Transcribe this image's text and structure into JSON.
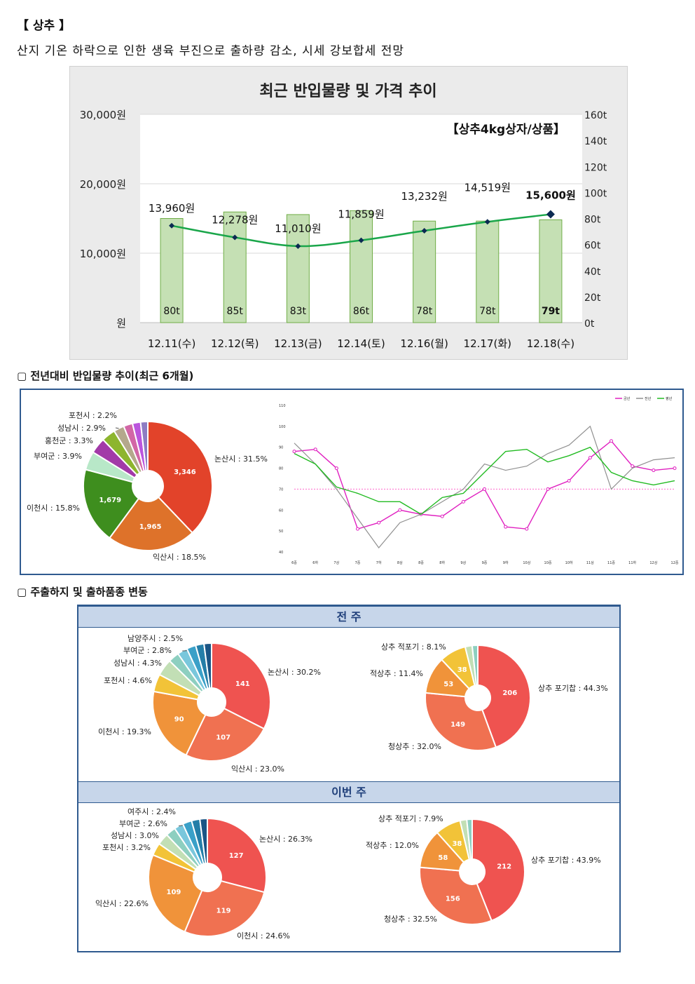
{
  "header": {
    "title": "【 상추 】",
    "summary": "산지 기온 하락으로 인한 생육 부진으로 출하량 감소, 시세 강보합세 전망"
  },
  "main_chart": {
    "title": "최근 반입물량 및 가격 추이",
    "note": "【상추4kg상자/상품】",
    "chart_data": {
      "type": "bar",
      "categories": [
        "12.11(수)",
        "12.12(목)",
        "12.13(금)",
        "12.14(토)",
        "12.16(월)",
        "12.17(화)",
        "12.18(수)"
      ],
      "series": [
        {
          "values": [
            80,
            85,
            83,
            86,
            78,
            78,
            79
          ],
          "labels": [
            "80t",
            "85t",
            "83t",
            "86t",
            "78t",
            "78t",
            "79t"
          ]
        },
        {
          "values": [
            13960,
            12278,
            11010,
            11859,
            13232,
            14519,
            15600
          ],
          "labels": [
            "13,960원",
            "12,278원",
            "11,010원",
            "11,859원",
            "13,232원",
            "14,519원",
            "15,600원"
          ]
        }
      ],
      "left_ticks": [
        "30,000원",
        "20,000원",
        "10,000원",
        "원"
      ],
      "right_ticks": [
        "160t",
        "140t",
        "120t",
        "100t",
        "80t",
        "60t",
        "40t",
        "20t",
        "0t"
      ],
      "ylim_left": [
        0,
        30000
      ],
      "ylim_right": [
        0,
        160
      ]
    }
  },
  "section2": {
    "heading": "▢ 전년대비 반입물량 추이(최근 6개월)",
    "pie": {
      "chart_data": {
        "type": "pie",
        "slices": [
          {
            "label": "논산시 : 31.5%",
            "value": 3346,
            "display": "3,346",
            "color": "#e2432a"
          },
          {
            "label": "익산시 : 18.5%",
            "value": 1965,
            "display": "1,965",
            "color": "#de722a"
          },
          {
            "label": "이천시 : 15.8%",
            "value": 1679,
            "display": "1,679",
            "color": "#3e8e1e"
          },
          {
            "label": "부여군 : 3.9%",
            "value": 414,
            "display": "",
            "color": "#b8e8c8"
          },
          {
            "label": "홍천군 : 3.3%",
            "value": 350,
            "display": "",
            "color": "#a23aa8"
          },
          {
            "label": "성남시 : 2.9%",
            "value": 308,
            "display": "",
            "color": "#8db52e"
          },
          {
            "label": "포천시 : 2.2%",
            "value": 233,
            "display": "",
            "color": "#b4a88c"
          },
          {
            "label": "",
            "value": 200,
            "display": "",
            "color": "#d266a6"
          },
          {
            "label": "",
            "value": 180,
            "display": "",
            "color": "#bb55dd"
          },
          {
            "label": "",
            "value": 160,
            "display": "",
            "color": "#8e7cc3"
          }
        ]
      }
    },
    "line": {
      "legend": [
        "금년",
        "전년",
        "평년"
      ],
      "chart_data": {
        "type": "line",
        "x": [
          "6중",
          "6하",
          "7상",
          "7중",
          "7하",
          "8상",
          "8중",
          "8하",
          "9상",
          "9중",
          "9하",
          "10상",
          "10중",
          "10하",
          "11상",
          "11중",
          "11하",
          "12상",
          "12중"
        ],
        "series": [
          {
            "values": [
              88,
              89,
              80,
              51,
              54,
              60,
              58,
              57,
              64,
              70,
              52,
              51,
              70,
              74,
              85,
              93,
              81,
              79,
              80
            ],
            "color": "#e020c0"
          },
          {
            "values": [
              92,
              82,
              70,
              56,
              42,
              54,
              58,
              64,
              70,
              82,
              79,
              81,
              87,
              91,
              100,
              70,
              80,
              84,
              85
            ],
            "color": "#909090"
          },
          {
            "values": [
              87,
              82,
              71,
              68,
              64,
              64,
              58,
              66,
              68,
              78,
              88,
              89,
              83,
              86,
              90,
              78,
              74,
              72,
              74
            ],
            "color": "#22bb22"
          }
        ],
        "reference": 70,
        "ylim": [
          40,
          110
        ],
        "y_ticks": [
          "110",
          "100",
          "90",
          "80",
          "70",
          "60",
          "50",
          "40"
        ]
      }
    }
  },
  "section3": {
    "heading": "▢ 주출하지 및 출하품종 변동",
    "prev_label": "전 주",
    "curr_label": "이번 주",
    "prev_region": {
      "chart_data": {
        "type": "pie",
        "slices": [
          {
            "label": "논산시 : 30.2%",
            "value": 141,
            "display": "141",
            "color": "#ef5350"
          },
          {
            "label": "익산시 : 23.0%",
            "value": 107,
            "display": "107",
            "color": "#f07151"
          },
          {
            "label": "이천시 : 19.3%",
            "value": 90,
            "display": "90",
            "color": "#f0933a"
          },
          {
            "label": "포천시 : 4.6%",
            "value": 21,
            "display": "",
            "color": "#f2c338"
          },
          {
            "label": "성남시 : 4.3%",
            "value": 20,
            "display": "",
            "color": "#c2dfb5"
          },
          {
            "label": "부여군 : 2.8%",
            "value": 13,
            "display": "",
            "color": "#8dcfc0"
          },
          {
            "label": "남양주시 : 2.5%",
            "value": 12,
            "display": "",
            "color": "#79c7dc"
          },
          {
            "label": "",
            "value": 11,
            "display": "",
            "color": "#3aa0c8"
          },
          {
            "label": "",
            "value": 10,
            "display": "",
            "color": "#247ea8"
          },
          {
            "label": "",
            "value": 9,
            "display": "",
            "color": "#1a5585"
          }
        ]
      }
    },
    "prev_variety": {
      "chart_data": {
        "type": "pie",
        "slices": [
          {
            "label": "상추 포기찹 : 44.3%",
            "value": 206,
            "display": "206",
            "color": "#ef5350"
          },
          {
            "label": "청상추 : 32.0%",
            "value": 149,
            "display": "149",
            "color": "#f07151"
          },
          {
            "label": "적상추 : 11.4%",
            "value": 53,
            "display": "53",
            "color": "#f0933a"
          },
          {
            "label": "상추 적포기 : 8.1%",
            "value": 38,
            "display": "38",
            "color": "#f2c338"
          },
          {
            "label": "",
            "value": 10,
            "display": "",
            "color": "#c2dfb5"
          },
          {
            "label": "",
            "value": 8,
            "display": "",
            "color": "#8dcfc0"
          }
        ]
      }
    },
    "curr_region": {
      "chart_data": {
        "type": "pie",
        "slices": [
          {
            "label": "논산시 : 26.3%",
            "value": 127,
            "display": "127",
            "color": "#ef5350"
          },
          {
            "label": "이천시 : 24.6%",
            "value": 119,
            "display": "119",
            "color": "#f07151"
          },
          {
            "label": "익산시 : 22.6%",
            "value": 109,
            "display": "109",
            "color": "#f0933a"
          },
          {
            "label": "포천시 : 3.2%",
            "value": 15,
            "display": "",
            "color": "#f2c338"
          },
          {
            "label": "성남시 : 3.0%",
            "value": 14,
            "display": "",
            "color": "#c2dfb5"
          },
          {
            "label": "부여군 : 2.6%",
            "value": 12,
            "display": "",
            "color": "#8dcfc0"
          },
          {
            "label": "여주시 : 2.4%",
            "value": 11,
            "display": "",
            "color": "#79c7dc"
          },
          {
            "label": "",
            "value": 11,
            "display": "",
            "color": "#3aa0c8"
          },
          {
            "label": "",
            "value": 10,
            "display": "",
            "color": "#247ea8"
          },
          {
            "label": "",
            "value": 9,
            "display": "",
            "color": "#1a5585"
          }
        ]
      }
    },
    "curr_variety": {
      "chart_data": {
        "type": "pie",
        "slices": [
          {
            "label": "상추 포기찹 : 43.9%",
            "value": 212,
            "display": "212",
            "color": "#ef5350"
          },
          {
            "label": "청상추 : 32.5%",
            "value": 156,
            "display": "156",
            "color": "#f07151"
          },
          {
            "label": "적상추 : 12.0%",
            "value": 58,
            "display": "58",
            "color": "#f0933a"
          },
          {
            "label": "상추 적포기 : 7.9%",
            "value": 38,
            "display": "38",
            "color": "#f2c338"
          },
          {
            "label": "",
            "value": 10,
            "display": "",
            "color": "#c2dfb5"
          },
          {
            "label": "",
            "value": 8,
            "display": "",
            "color": "#8dcfc0"
          }
        ]
      }
    }
  }
}
